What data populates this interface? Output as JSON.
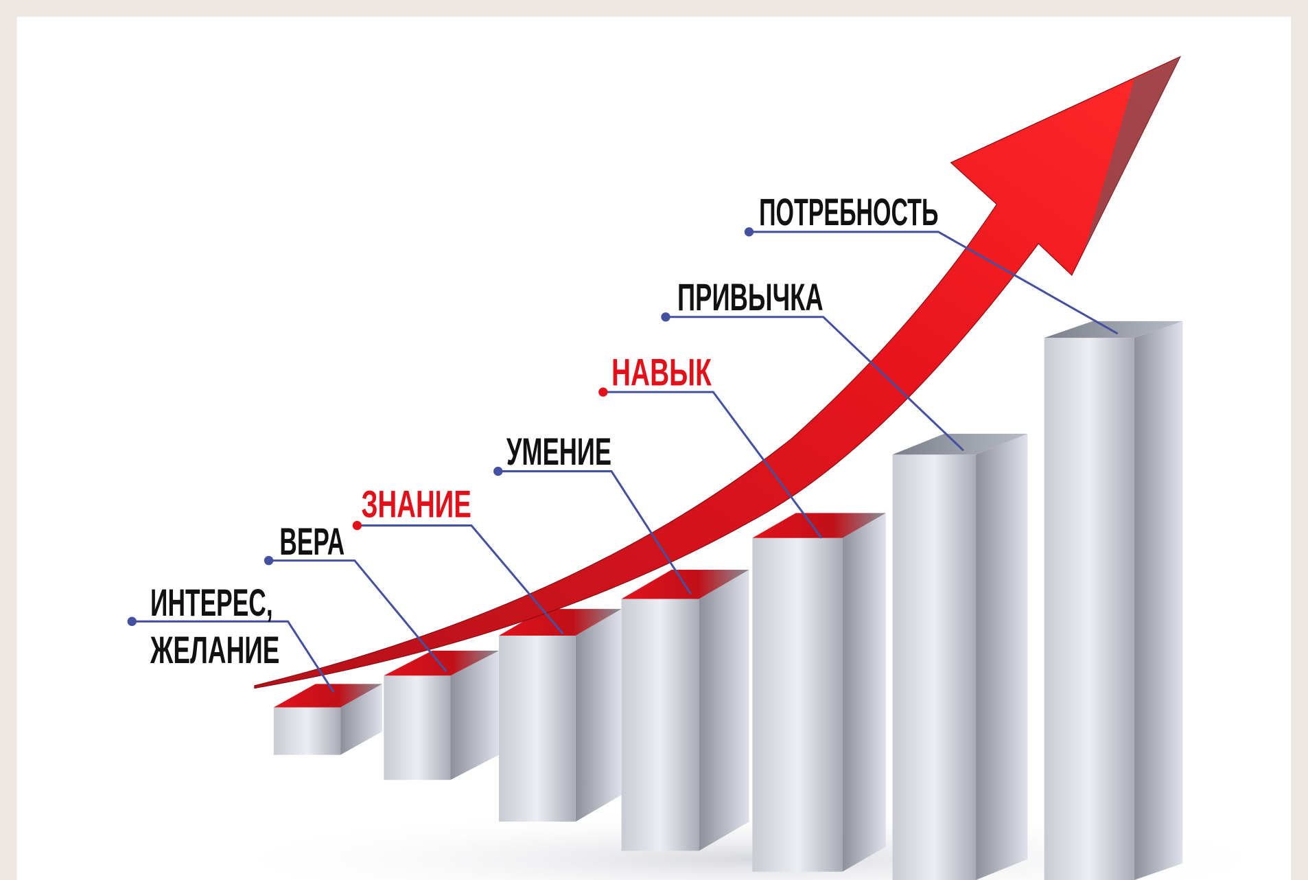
{
  "steps": [
    {
      "lines": [
        "ИНТЕРЕС,",
        "ЖЕЛАНИЕ"
      ],
      "color": "#111111"
    },
    {
      "lines": [
        "ВЕРА"
      ],
      "color": "#111111"
    },
    {
      "lines": [
        "ЗНАНИЕ"
      ],
      "color": "#e3101a"
    },
    {
      "lines": [
        "УМЕНИЕ"
      ],
      "color": "#111111"
    },
    {
      "lines": [
        "НАВЫК"
      ],
      "color": "#e3101a"
    },
    {
      "lines": [
        "ПРИВЫЧКА"
      ],
      "color": "#111111"
    },
    {
      "lines": [
        "ПОТРЕБНОСТЬ"
      ],
      "color": "#111111"
    }
  ]
}
